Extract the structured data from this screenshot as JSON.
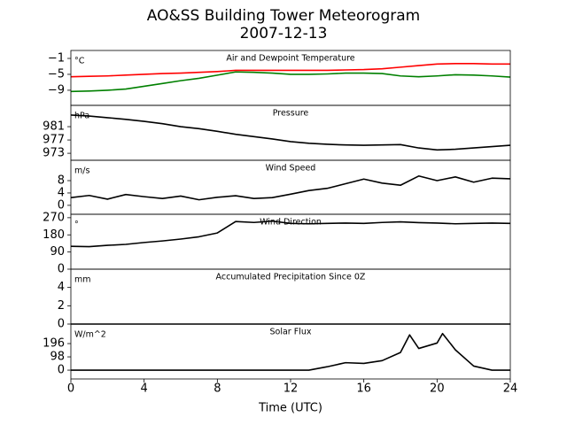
{
  "title": "AO&SS Building Tower Meteorogram",
  "subtitle": "2007-12-13",
  "xlabel": "Time (UTC)",
  "chart_data": [
    {
      "type": "line",
      "title": "Air and Dewpoint Temperature",
      "unit": "°C",
      "x": [
        0,
        1,
        2,
        3,
        4,
        5,
        6,
        7,
        8,
        9,
        10,
        11,
        12,
        13,
        14,
        15,
        16,
        17,
        18,
        19,
        20,
        21,
        22,
        23,
        24
      ],
      "series": [
        {
          "color": "#ff0000",
          "values": [
            -5.6,
            -5.5,
            -5.4,
            -5.2,
            -5.0,
            -4.8,
            -4.7,
            -4.5,
            -4.3,
            -4.0,
            -4.0,
            -4.0,
            -4.0,
            -4.0,
            -4.0,
            -3.9,
            -3.8,
            -3.6,
            -3.2,
            -2.8,
            -2.4,
            -2.3,
            -2.3,
            -2.4,
            -2.4
          ]
        },
        {
          "color": "#008000",
          "values": [
            -9.3,
            -9.2,
            -9.0,
            -8.7,
            -8.0,
            -7.3,
            -6.6,
            -6.0,
            -5.2,
            -4.4,
            -4.5,
            -4.7,
            -5.0,
            -5.0,
            -4.9,
            -4.7,
            -4.7,
            -4.8,
            -5.4,
            -5.6,
            -5.4,
            -5.1,
            -5.2,
            -5.4,
            -5.7
          ]
        }
      ],
      "xlim": [
        0,
        24
      ],
      "ylim": [
        -12.8,
        1
      ],
      "yticks": [
        {
          "value": -9,
          "label": "−9"
        },
        {
          "value": -5,
          "label": "−5"
        },
        {
          "value": -1,
          "label": "−1"
        }
      ]
    },
    {
      "type": "line",
      "title": "Pressure",
      "unit": "hPa",
      "x": [
        0,
        1,
        2,
        3,
        4,
        5,
        6,
        7,
        8,
        9,
        10,
        11,
        12,
        13,
        14,
        15,
        16,
        17,
        18,
        19,
        20,
        21,
        22,
        23,
        24
      ],
      "series": [
        {
          "color": "#000000",
          "values": [
            984.5,
            984.2,
            983.7,
            983.2,
            982.6,
            981.9,
            981.0,
            980.4,
            979.6,
            978.7,
            978.0,
            977.3,
            976.5,
            976.0,
            975.7,
            975.5,
            975.4,
            975.5,
            975.6,
            974.6,
            974.0,
            974.2,
            974.6,
            975.0,
            975.4
          ]
        }
      ],
      "xlim": [
        0,
        24
      ],
      "ylim": [
        970.9,
        987.4
      ],
      "yticks": [
        973,
        977,
        981
      ]
    },
    {
      "type": "line",
      "title": "Wind Speed",
      "unit": "m/s",
      "x": [
        0,
        1,
        2,
        3,
        4,
        5,
        6,
        7,
        8,
        9,
        10,
        11,
        12,
        13,
        14,
        15,
        16,
        17,
        18,
        19,
        20,
        21,
        22,
        23,
        24
      ],
      "series": [
        {
          "color": "#000000",
          "values": [
            2.5,
            3.2,
            2.0,
            3.5,
            2.8,
            2.2,
            3.0,
            1.8,
            2.6,
            3.1,
            2.2,
            2.5,
            3.6,
            4.8,
            5.5,
            7.0,
            8.5,
            7.2,
            6.5,
            9.5,
            8.0,
            9.2,
            7.5,
            8.8,
            8.6
          ]
        }
      ],
      "xlim": [
        0,
        24
      ],
      "ylim": [
        -2.9,
        14.6
      ],
      "yticks": [
        0,
        4,
        8
      ]
    },
    {
      "type": "line",
      "title": "Wind Direction",
      "unit": "°",
      "x": [
        0,
        1,
        2,
        3,
        4,
        5,
        6,
        7,
        8,
        9,
        10,
        11,
        12,
        13,
        14,
        15,
        16,
        17,
        18,
        19,
        20,
        21,
        22,
        23,
        24
      ],
      "series": [
        {
          "color": "#000000",
          "values": [
            120,
            118,
            125,
            130,
            140,
            148,
            158,
            170,
            190,
            250,
            245,
            252,
            240,
            238,
            240,
            242,
            240,
            245,
            248,
            244,
            242,
            238,
            240,
            242,
            240
          ]
        }
      ],
      "xlim": [
        0,
        24
      ],
      "ylim": [
        0,
        288
      ],
      "yticks": [
        0,
        90,
        180,
        270
      ]
    },
    {
      "type": "line",
      "title": "Accumulated Precipitation Since 0Z",
      "unit": "mm",
      "x": [
        0,
        1,
        2,
        3,
        4,
        5,
        6,
        7,
        8,
        9,
        10,
        11,
        12,
        13,
        14,
        15,
        16,
        17,
        18,
        19,
        20,
        21,
        22,
        23,
        24
      ],
      "series": [
        {
          "color": "#000000",
          "values": [
            0,
            0,
            0,
            0,
            0,
            0,
            0,
            0,
            0,
            0,
            0,
            0,
            0,
            0,
            0,
            0,
            0,
            0,
            0,
            0,
            0,
            0,
            0,
            0,
            0
          ]
        }
      ],
      "xlim": [
        0,
        24
      ],
      "ylim": [
        0,
        6
      ],
      "yticks": [
        0,
        2,
        4
      ]
    },
    {
      "type": "line",
      "title": "Solar Flux",
      "unit": "W/m^2",
      "x": [
        0,
        1,
        2,
        3,
        4,
        5,
        6,
        7,
        8,
        9,
        10,
        11,
        12,
        13,
        14,
        15,
        16,
        17,
        18,
        18.5,
        19,
        20,
        20.3,
        21,
        22,
        23,
        24
      ],
      "series": [
        {
          "color": "#000000",
          "values": [
            0,
            0,
            0,
            0,
            0,
            0,
            0,
            0,
            0,
            0,
            0,
            0,
            0,
            0,
            25,
            55,
            50,
            70,
            130,
            260,
            160,
            200,
            270,
            150,
            30,
            0,
            0
          ]
        }
      ],
      "xlim": [
        0,
        24
      ],
      "ylim": [
        -65,
        340
      ],
      "yticks": [
        0,
        98,
        196
      ],
      "xticks": [
        0,
        4,
        8,
        12,
        16,
        20,
        24
      ]
    }
  ]
}
